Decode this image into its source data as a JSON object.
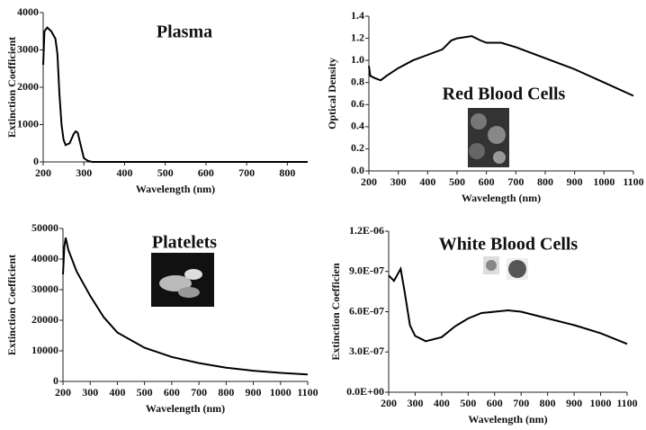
{
  "chart_data": [
    {
      "type": "line",
      "title": "Plasma",
      "xlabel": "Wavelength (nm)",
      "ylabel": "Extinction Coefficient",
      "x": [
        200,
        203,
        210,
        220,
        230,
        235,
        240,
        245,
        250,
        255,
        265,
        275,
        280,
        285,
        290,
        300,
        310,
        320,
        400,
        500,
        600,
        700,
        800,
        850
      ],
      "values": [
        2600,
        3500,
        3600,
        3500,
        3300,
        2900,
        1800,
        1000,
        600,
        450,
        500,
        750,
        820,
        780,
        550,
        100,
        30,
        0,
        0,
        0,
        0,
        0,
        0,
        0
      ],
      "xlim": [
        200,
        850
      ],
      "xticks": [
        200,
        300,
        400,
        500,
        600,
        700,
        800
      ],
      "ylim": [
        0,
        4000
      ],
      "yticks": [
        0,
        1000,
        2000,
        3000,
        4000
      ],
      "color": "#000000"
    },
    {
      "type": "line",
      "title": "Red Blood Cells",
      "xlabel": "Wavelength (nm)",
      "ylabel": "Optical Density",
      "x": [
        200,
        205,
        220,
        240,
        260,
        300,
        350,
        400,
        450,
        480,
        500,
        550,
        580,
        600,
        650,
        700,
        800,
        900,
        1000,
        1100
      ],
      "values": [
        0.95,
        0.86,
        0.84,
        0.82,
        0.86,
        0.93,
        1.0,
        1.05,
        1.1,
        1.18,
        1.2,
        1.22,
        1.18,
        1.16,
        1.16,
        1.12,
        1.02,
        0.92,
        0.8,
        0.68
      ],
      "xlim": [
        200,
        1100
      ],
      "xticks": [
        200,
        300,
        400,
        500,
        600,
        700,
        800,
        900,
        1000,
        1100
      ],
      "ylim": [
        0,
        1.4
      ],
      "yticks": [
        {
          "value": 0,
          "label": "0.0"
        },
        0.2,
        0.4,
        0.6,
        0.8,
        {
          "value": 1,
          "label": "1.0"
        },
        1.2,
        1.4
      ],
      "color": "#000000"
    },
    {
      "type": "line",
      "title": "Platelets",
      "xlabel": "Wavelength (nm)",
      "ylabel": "Extinction Coefficient",
      "x": [
        200,
        205,
        210,
        220,
        250,
        300,
        350,
        400,
        500,
        600,
        700,
        800,
        900,
        1000,
        1100
      ],
      "values": [
        35000,
        44000,
        47000,
        43000,
        36000,
        28000,
        21000,
        16000,
        11000,
        8000,
        6000,
        4500,
        3500,
        2800,
        2300
      ],
      "xlim": [
        200,
        1100
      ],
      "xticks": [
        200,
        300,
        400,
        500,
        600,
        700,
        800,
        900,
        1000,
        1100
      ],
      "ylim": [
        0,
        50000
      ],
      "yticks": [
        0,
        10000,
        20000,
        30000,
        40000,
        50000
      ],
      "color": "#000000"
    },
    {
      "type": "line",
      "title": "White Blood Cells",
      "xlabel": "Wavelength (nm)",
      "ylabel": "Extinction Coefficien",
      "x": [
        200,
        220,
        245,
        260,
        280,
        300,
        340,
        400,
        450,
        500,
        550,
        600,
        650,
        700,
        800,
        900,
        1000,
        1100
      ],
      "values": [
        8.7e-07,
        8.3e-07,
        9.2e-07,
        7.5e-07,
        5e-07,
        4.2e-07,
        3.8e-07,
        4.1e-07,
        4.9e-07,
        5.5e-07,
        5.9e-07,
        6e-07,
        6.1e-07,
        6e-07,
        5.5e-07,
        5e-07,
        4.4e-07,
        3.6e-07
      ],
      "xlim": [
        200,
        1100
      ],
      "xticks": [
        200,
        300,
        400,
        500,
        600,
        700,
        800,
        900,
        1000,
        1100
      ],
      "ylim": [
        0,
        1.2e-06
      ],
      "yticks": [
        {
          "value": 0,
          "label": "0.0E+00"
        },
        {
          "value": 3e-07,
          "label": "3.0E-07"
        },
        {
          "value": 6e-07,
          "label": "6.0E-07"
        },
        {
          "value": 9e-07,
          "label": "9.0E-07"
        },
        {
          "value": 1.2e-06,
          "label": "1.2E-06"
        }
      ],
      "color": "#000000"
    }
  ]
}
